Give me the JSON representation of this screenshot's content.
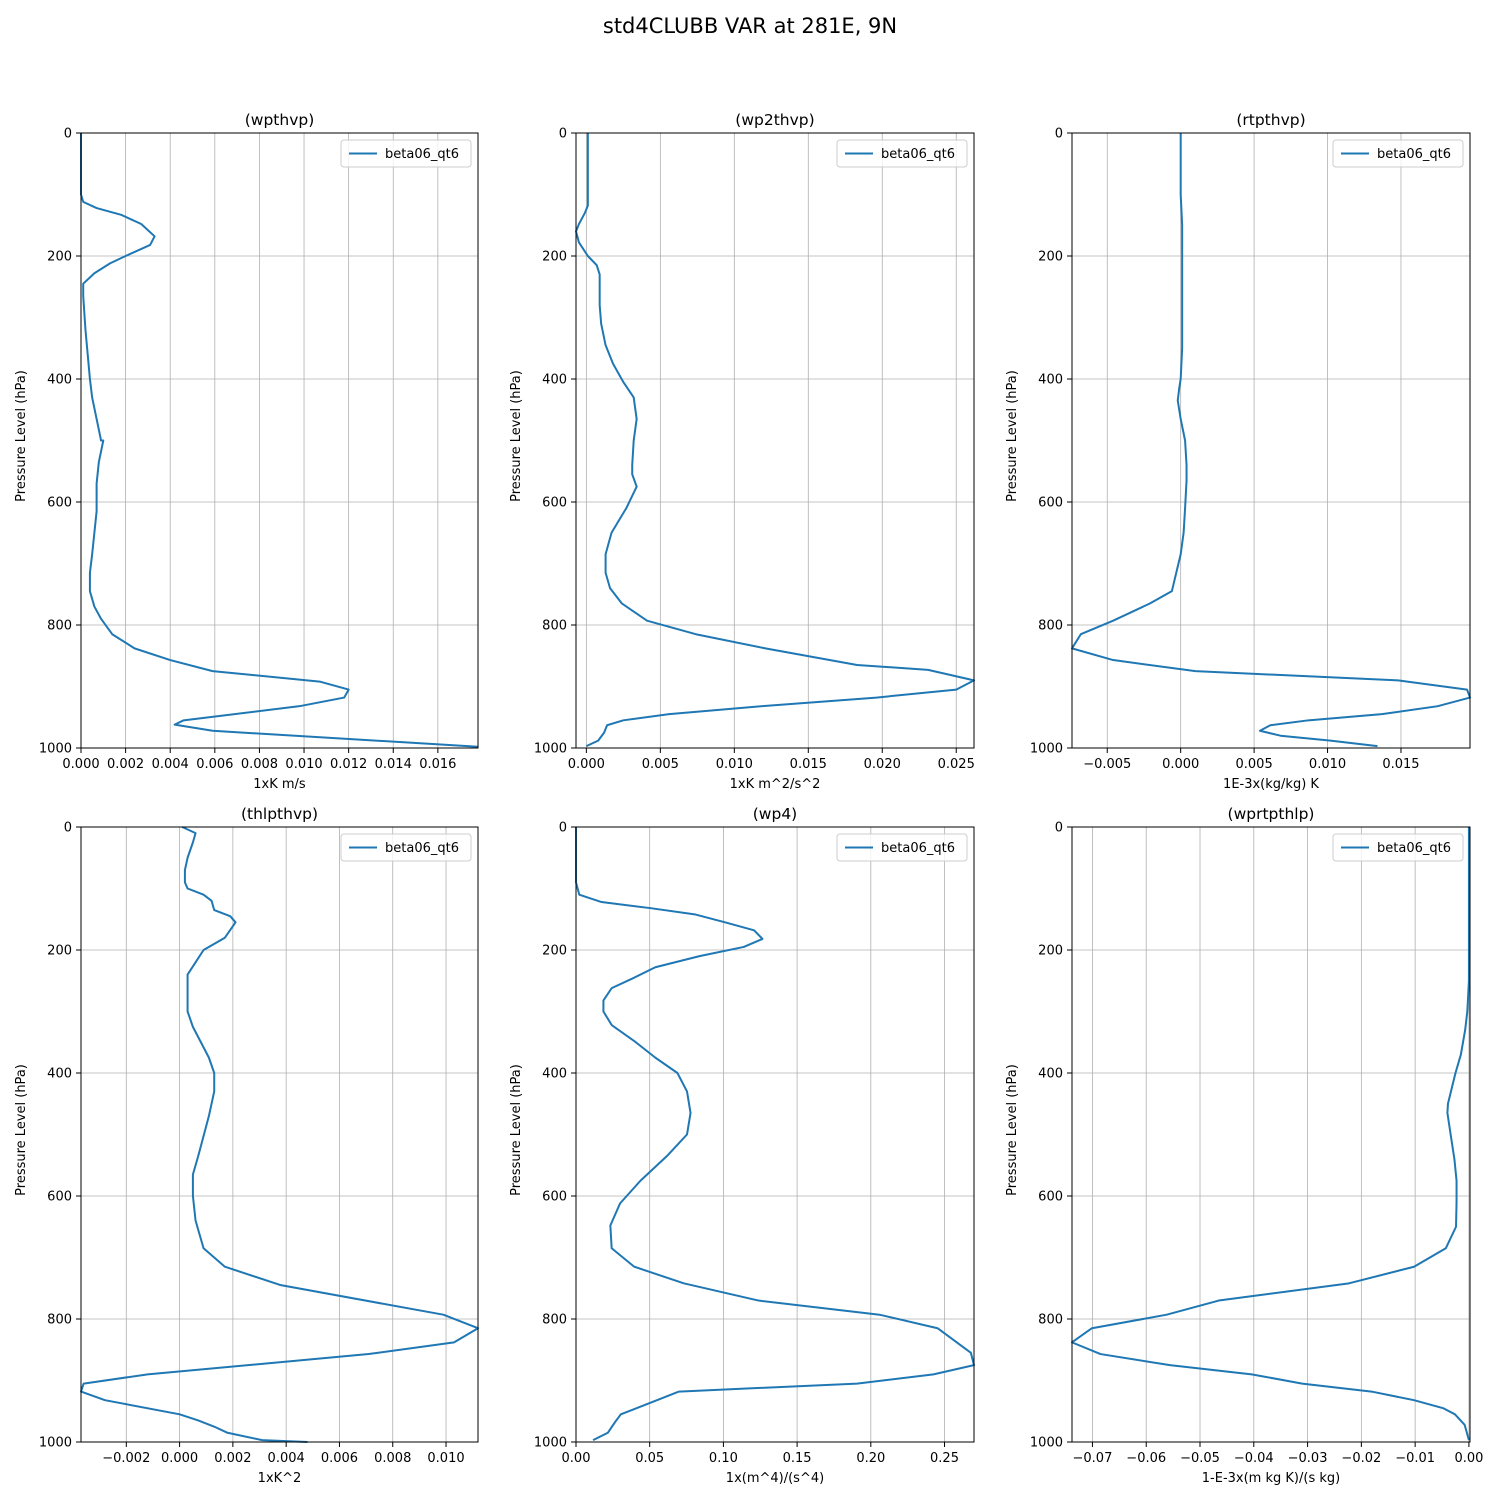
{
  "page": {
    "title": "std4CLUBB VAR at 281E, 9N"
  },
  "chart_data": [
    {
      "type": "line",
      "title": "(wpthvp)",
      "xlabel": "1xK m/s",
      "ylabel": "Pressure Level (hPa)",
      "xlim": [
        0.0,
        0.0178
      ],
      "ylim": [
        1000,
        0
      ],
      "xticks": [
        0.0,
        0.002,
        0.004,
        0.006,
        0.008,
        0.01,
        0.012,
        0.014,
        0.016
      ],
      "xticklabels": [
        "0.000",
        "0.002",
        "0.004",
        "0.006",
        "0.008",
        "0.010",
        "0.012",
        "0.014",
        "0.016"
      ],
      "yticks": [
        0,
        200,
        400,
        600,
        800,
        1000
      ],
      "yticklabels": [
        "0",
        "200",
        "400",
        "600",
        "800",
        "1000"
      ],
      "grid": true,
      "legend": "upper right",
      "series": [
        {
          "name": "beta06_qt6",
          "color": "#1f77b4",
          "x": [
            0.0,
            0.0,
            0.0,
            0.0001,
            0.0007,
            0.0018,
            0.0027,
            0.0033,
            0.0031,
            0.002,
            0.0013,
            0.0006,
            0.0001,
            0.0001,
            0.0002,
            0.0003,
            0.0004,
            0.0005,
            0.0007,
            0.0009,
            0.001,
            0.0008,
            0.0007,
            0.0007,
            0.0006,
            0.0005,
            0.0004,
            0.0004,
            0.0006,
            0.0009,
            0.0014,
            0.0024,
            0.004,
            0.0059,
            0.0107,
            0.012,
            0.0118,
            0.0098,
            0.0046,
            0.0042,
            0.0059,
            0.0178
          ],
          "y": [
            0,
            50,
            100,
            112,
            122,
            133,
            148,
            168,
            182,
            200,
            212,
            228,
            245,
            265,
            320,
            360,
            400,
            430,
            465,
            500,
            500,
            535,
            570,
            615,
            650,
            685,
            715,
            745,
            770,
            790,
            815,
            838,
            857,
            875,
            892,
            905,
            918,
            932,
            955,
            962,
            972,
            998
          ]
        }
      ]
    },
    {
      "type": "line",
      "title": "(wp2thvp)",
      "xlabel": "1xK m^2/s^2",
      "ylabel": "Pressure Level (hPa)",
      "xlim": [
        -0.0007,
        0.0262
      ],
      "ylim": [
        1000,
        0
      ],
      "xticks": [
        0.0,
        0.005,
        0.01,
        0.015,
        0.02,
        0.025
      ],
      "xticklabels": [
        "0.000",
        "0.005",
        "0.010",
        "0.015",
        "0.020",
        "0.025"
      ],
      "yticks": [
        0,
        200,
        400,
        600,
        800,
        1000
      ],
      "yticklabels": [
        "0",
        "200",
        "400",
        "600",
        "800",
        "1000"
      ],
      "grid": true,
      "legend": "upper right",
      "series": [
        {
          "name": "beta06_qt6",
          "color": "#1f77b4",
          "x": [
            0.0001,
            0.0001,
            0.0001,
            0.0001,
            -0.0001,
            -0.0005,
            -0.0007,
            -0.0005,
            0.0001,
            0.0007,
            0.0009,
            0.0009,
            0.0009,
            0.001,
            0.0013,
            0.0018,
            0.0025,
            0.0032,
            0.0034,
            0.0032,
            0.0031,
            0.0031,
            0.0034,
            0.0027,
            0.0017,
            0.0013,
            0.0013,
            0.0016,
            0.0024,
            0.0041,
            0.0074,
            0.0121,
            0.0183,
            0.0231,
            0.0262,
            0.025,
            0.0196,
            0.0119,
            0.0056,
            0.0025,
            0.0014,
            0.0012,
            0.0008,
            0.0
          ],
          "y": [
            0,
            50,
            100,
            118,
            130,
            148,
            160,
            178,
            200,
            215,
            230,
            245,
            280,
            310,
            345,
            375,
            405,
            430,
            465,
            500,
            540,
            555,
            575,
            610,
            650,
            685,
            715,
            740,
            765,
            793,
            815,
            838,
            865,
            873,
            890,
            905,
            918,
            932,
            945,
            955,
            963,
            975,
            988,
            997
          ]
        }
      ]
    },
    {
      "type": "line",
      "title": "(rtpthvp)",
      "xlabel": "1E-3x(kg/kg) K",
      "ylabel": "Pressure Level (hPa)",
      "xlim": [
        -0.0074,
        0.0197
      ],
      "ylim": [
        1000,
        0
      ],
      "xticks": [
        -0.005,
        0.0,
        0.005,
        0.01,
        0.015
      ],
      "xticklabels": [
        "−0.005",
        "0.000",
        "0.005",
        "0.010",
        "0.015"
      ],
      "yticks": [
        0,
        200,
        400,
        600,
        800,
        1000
      ],
      "yticklabels": [
        "0",
        "200",
        "400",
        "600",
        "800",
        "1000"
      ],
      "grid": true,
      "legend": "upper right",
      "series": [
        {
          "name": "beta06_qt6",
          "color": "#1f77b4",
          "x": [
            0.0,
            0.0,
            0.0,
            0.0001,
            0.0001,
            0.0001,
            0.0001,
            0.0001,
            0.0,
            -0.0001,
            -0.0002,
            -0.0001,
            0.0,
            0.0003,
            0.0004,
            0.0004,
            0.0003,
            0.0002,
            0.0,
            -0.0003,
            -0.0006,
            -0.0021,
            -0.0046,
            -0.0068,
            -0.0074,
            -0.0046,
            0.001,
            0.0148,
            0.0195,
            0.0197,
            0.0175,
            0.0137,
            0.0087,
            0.0061,
            0.0054,
            0.0068,
            0.0102,
            0.0134
          ],
          "y": [
            0,
            50,
            100,
            150,
            200,
            250,
            300,
            350,
            400,
            415,
            435,
            450,
            465,
            500,
            540,
            565,
            610,
            650,
            685,
            715,
            745,
            765,
            793,
            815,
            838,
            857,
            875,
            890,
            905,
            918,
            932,
            945,
            955,
            963,
            972,
            980,
            988,
            997
          ]
        }
      ]
    },
    {
      "type": "line",
      "title": "(thlpthvp)",
      "xlabel": "1xK^2",
      "ylabel": "Pressure Level (hPa)",
      "xlim": [
        -0.0037,
        0.0112
      ],
      "ylim": [
        1000,
        0
      ],
      "xticks": [
        -0.002,
        0.0,
        0.002,
        0.004,
        0.006,
        0.008,
        0.01
      ],
      "xticklabels": [
        "−0.002",
        "0.000",
        "0.002",
        "0.004",
        "0.006",
        "0.008",
        "0.010"
      ],
      "yticks": [
        0,
        200,
        400,
        600,
        800,
        1000
      ],
      "yticklabels": [
        "0",
        "200",
        "400",
        "600",
        "800",
        "1000"
      ],
      "grid": true,
      "legend": "upper right",
      "series": [
        {
          "name": "beta06_qt6",
          "color": "#1f77b4",
          "x": [
            0.0001,
            0.0006,
            0.0005,
            0.0003,
            0.0002,
            0.0002,
            0.0003,
            0.0009,
            0.0012,
            0.0013,
            0.0019,
            0.0021,
            0.0017,
            0.0009,
            0.0006,
            0.0003,
            0.0003,
            0.0003,
            0.0005,
            0.0008,
            0.0011,
            0.0013,
            0.0013,
            0.0011,
            0.0007,
            0.0005,
            0.0005,
            0.0006,
            0.0009,
            0.0017,
            0.0038,
            0.0099,
            0.0112,
            0.0103,
            0.0071,
            -0.0012,
            -0.0036,
            -0.0037,
            -0.0028,
            0.0,
            0.0007,
            0.0013,
            0.0018,
            0.0031,
            0.0048
          ],
          "y": [
            0,
            10,
            25,
            50,
            70,
            90,
            100,
            110,
            120,
            135,
            145,
            155,
            180,
            200,
            220,
            240,
            280,
            300,
            325,
            350,
            375,
            400,
            430,
            470,
            535,
            565,
            600,
            640,
            685,
            715,
            745,
            793,
            815,
            838,
            857,
            890,
            905,
            918,
            932,
            955,
            965,
            975,
            985,
            997,
            1000
          ]
        }
      ]
    },
    {
      "type": "line",
      "title": "(wp4)",
      "xlabel": "1x(m^4)/(s^4)",
      "ylabel": "Pressure Level (hPa)",
      "xlim": [
        0.0,
        0.27
      ],
      "ylim": [
        1000,
        0
      ],
      "xticks": [
        0.0,
        0.05,
        0.1,
        0.15,
        0.2,
        0.25
      ],
      "xticklabels": [
        "0.00",
        "0.05",
        "0.10",
        "0.15",
        "0.20",
        "0.25"
      ],
      "yticks": [
        0,
        200,
        400,
        600,
        800,
        1000
      ],
      "yticklabels": [
        "0",
        "200",
        "400",
        "600",
        "800",
        "1000"
      ],
      "grid": true,
      "legend": "upper right",
      "series": [
        {
          "name": "beta06_qt6",
          "color": "#1f77b4",
          "x": [
            0.0,
            0.0,
            0.0,
            0.0022,
            0.0173,
            0.0508,
            0.0805,
            0.1011,
            0.1208,
            0.1265,
            0.1138,
            0.0838,
            0.0538,
            0.0395,
            0.0242,
            0.0186,
            0.0186,
            0.0242,
            0.0395,
            0.0538,
            0.0688,
            0.0753,
            0.0777,
            0.0753,
            0.0617,
            0.0438,
            0.0299,
            0.0233,
            0.0242,
            0.0395,
            0.0731,
            0.1238,
            0.2059,
            0.2453,
            0.2679,
            0.27,
            0.2425,
            0.1906,
            0.0698,
            0.0411,
            0.0304,
            0.0273,
            0.0244,
            0.0216,
            0.0116
          ],
          "y": [
            0,
            50,
            90,
            110,
            122,
            132,
            142,
            155,
            168,
            182,
            195,
            210,
            228,
            245,
            262,
            282,
            300,
            322,
            348,
            375,
            400,
            430,
            465,
            500,
            535,
            575,
            612,
            648,
            685,
            715,
            742,
            770,
            793,
            815,
            855,
            875,
            890,
            905,
            918,
            945,
            955,
            965,
            975,
            985,
            997
          ]
        }
      ]
    },
    {
      "type": "line",
      "title": "(wprtpthlp)",
      "xlabel": "1-E-3x(m kg K)/(s kg)",
      "ylabel": "Pressure Level (hPa)",
      "xlim": [
        -0.0738,
        0.0002
      ],
      "ylim": [
        1000,
        0
      ],
      "xticks": [
        -0.07,
        -0.06,
        -0.05,
        -0.04,
        -0.03,
        -0.02,
        -0.01,
        0.0
      ],
      "xticklabels": [
        "−0.07",
        "−0.06",
        "−0.05",
        "−0.04",
        "−0.03",
        "−0.02",
        "−0.01",
        "0.00"
      ],
      "yticks": [
        0,
        200,
        400,
        600,
        800,
        1000
      ],
      "yticklabels": [
        "0",
        "200",
        "400",
        "600",
        "800",
        "1000"
      ],
      "grid": true,
      "legend": "upper right",
      "series": [
        {
          "name": "beta06_qt6",
          "color": "#1f77b4",
          "x": [
            0.0,
            0.0,
            0.0,
            0.0,
            0.0,
            -0.0003,
            -0.0007,
            -0.0015,
            -0.0025,
            -0.0032,
            -0.0039,
            -0.004,
            -0.0034,
            -0.0027,
            -0.0023,
            -0.0023,
            -0.0024,
            -0.0043,
            -0.0102,
            -0.0223,
            -0.0465,
            -0.0562,
            -0.0701,
            -0.0738,
            -0.0685,
            -0.0556,
            -0.0404,
            -0.031,
            -0.0181,
            -0.0102,
            -0.0048,
            -0.0026,
            -0.0008,
            0.0
          ],
          "y": [
            0,
            50,
            100,
            200,
            250,
            300,
            330,
            370,
            400,
            425,
            450,
            465,
            500,
            540,
            575,
            610,
            650,
            685,
            715,
            742,
            770,
            793,
            815,
            838,
            857,
            875,
            890,
            905,
            918,
            932,
            945,
            955,
            972,
            997
          ]
        }
      ]
    }
  ]
}
